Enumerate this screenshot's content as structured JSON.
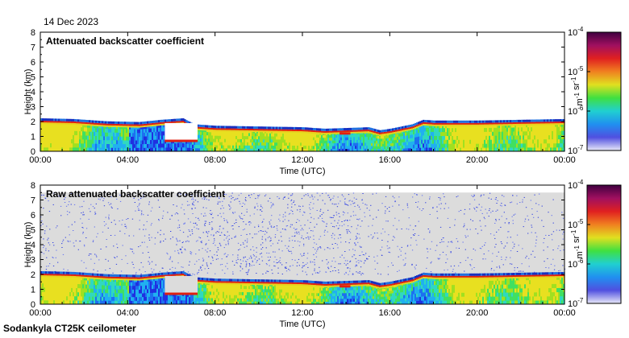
{
  "date": "14 Dec 2023",
  "footer": "Sodankyla CT25K ceilometer",
  "chart_data": [
    {
      "type": "heatmap",
      "title": "Attenuated backscatter coefficient",
      "xlabel": "Time (UTC)",
      "ylabel": "Height (km)",
      "xticks": [
        "00:00",
        "04:00",
        "08:00",
        "12:00",
        "16:00",
        "20:00",
        "00:00"
      ],
      "xlim_hours": [
        0,
        24
      ],
      "ylim": [
        0,
        8
      ],
      "yticks": [
        0,
        1,
        2,
        3,
        4,
        5,
        6,
        7,
        8
      ],
      "colorbar": {
        "scale": "log",
        "min": "10-7",
        "max": "10-4",
        "ticks": [
          "10-4",
          "10-5",
          "10-6",
          "10-7"
        ],
        "label": "m-1 sr-1"
      },
      "background_noise": false,
      "cloud_base_km": [
        [
          0,
          2.0
        ],
        [
          1.5,
          1.95
        ],
        [
          3,
          1.8
        ],
        [
          4.5,
          1.75
        ],
        [
          5.5,
          1.9
        ],
        [
          6.5,
          2.0
        ],
        [
          7,
          1.6
        ],
        [
          8,
          1.5
        ],
        [
          10,
          1.45
        ],
        [
          12,
          1.4
        ],
        [
          13,
          1.3
        ],
        [
          14,
          1.35
        ],
        [
          15,
          1.4
        ],
        [
          15.5,
          1.2
        ],
        [
          16,
          1.3
        ],
        [
          17,
          1.6
        ],
        [
          17.5,
          1.9
        ],
        [
          18,
          1.85
        ],
        [
          20,
          1.85
        ],
        [
          22,
          1.9
        ],
        [
          24,
          1.95
        ]
      ],
      "low_cloud_segments": [
        {
          "from_h": 5.7,
          "to_h": 7.2,
          "km": 0.7
        },
        {
          "from_h": 13.7,
          "to_h": 14.2,
          "km": 1.2
        }
      ]
    },
    {
      "type": "heatmap",
      "title": "Raw attenuated backscatter coefficient",
      "xlabel": "Time (UTC)",
      "ylabel": "Height (km)",
      "xticks": [
        "00:00",
        "04:00",
        "08:00",
        "12:00",
        "16:00",
        "20:00",
        "00:00"
      ],
      "xlim_hours": [
        0,
        24
      ],
      "ylim": [
        0,
        8
      ],
      "yticks": [
        0,
        1,
        2,
        3,
        4,
        5,
        6,
        7,
        8
      ],
      "colorbar": {
        "scale": "log",
        "min": "10-7",
        "max": "10-4",
        "ticks": [
          "10-4",
          "10-5",
          "10-6",
          "10-7"
        ],
        "label": "m-1 sr-1"
      },
      "background_noise": true,
      "cloud_base_km": [
        [
          0,
          2.0
        ],
        [
          1.5,
          1.95
        ],
        [
          3,
          1.8
        ],
        [
          4.5,
          1.75
        ],
        [
          5.5,
          1.9
        ],
        [
          6.5,
          2.0
        ],
        [
          7,
          1.6
        ],
        [
          8,
          1.5
        ],
        [
          10,
          1.45
        ],
        [
          12,
          1.4
        ],
        [
          13,
          1.3
        ],
        [
          14,
          1.35
        ],
        [
          15,
          1.4
        ],
        [
          15.5,
          1.2
        ],
        [
          16,
          1.3
        ],
        [
          17,
          1.6
        ],
        [
          17.5,
          1.9
        ],
        [
          18,
          1.85
        ],
        [
          20,
          1.85
        ],
        [
          22,
          1.9
        ],
        [
          24,
          1.95
        ]
      ],
      "low_cloud_segments": [
        {
          "from_h": 5.7,
          "to_h": 7.2,
          "km": 0.7
        },
        {
          "from_h": 13.7,
          "to_h": 14.2,
          "km": 1.2
        }
      ]
    }
  ]
}
